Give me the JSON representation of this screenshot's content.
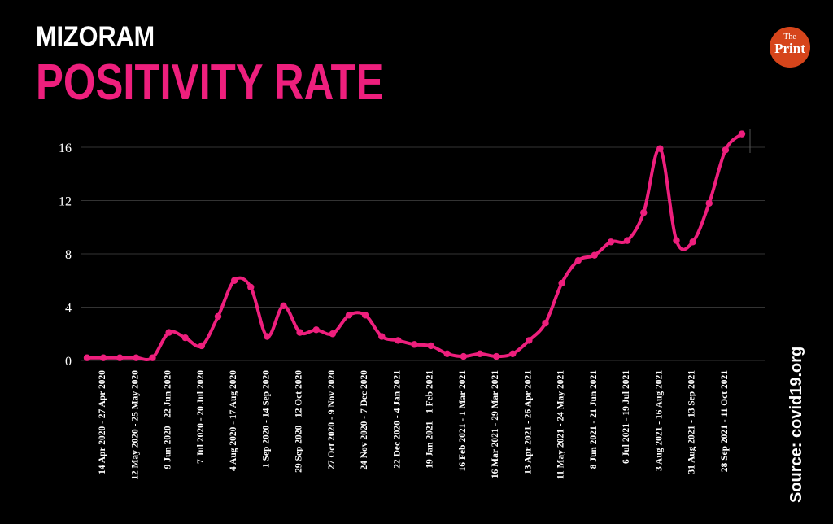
{
  "header": {
    "title": "MIZORAM",
    "subtitle": "POSITIVITY RATE"
  },
  "logo": {
    "line1": "The",
    "line2": "Print"
  },
  "source": "Source: covid19.org",
  "colors": {
    "accent": "#ee1f7d",
    "background": "#000000",
    "grid": "#333333",
    "logo": "#d6451b"
  },
  "chart_data": {
    "type": "line",
    "title": "POSITIVITY RATE",
    "xlabel": "",
    "ylabel": "",
    "ylim": [
      0,
      16
    ],
    "yticks": [
      0,
      4,
      8,
      12,
      16
    ],
    "tick_labels": [
      "14 Apr 2020 - 27 Apr 2020",
      "12 May 2020 - 25 May 2020",
      "9 Jun 2020 - 22 Jun 2020",
      "7 Jul 2020 - 20 Jul 2020",
      "4 Aug 2020 - 17 Aug 2020",
      "1 Sep 2020 - 14 Sep 2020",
      "29 Sep 2020 - 12 Oct 2020",
      "27 Oct 2020 - 9 Nov 2020",
      "24 Nov 2020 - 7 Dec 2020",
      "22 Dec 2020 - 4 Jan 2021",
      "19 Jan 2021 - 1 Feb 2021",
      "16 Feb 2021 - 1 Mar 2021",
      "16 Mar 2021 - 29 Mar 2021",
      "13 Apr 2021 - 26 Apr 2021",
      "11 May 2021 - 24 May 2021",
      "8 Jun 2021 - 21 Jun 2021",
      "6 Jul 2021 - 19 Jul 2021",
      "3 Aug 2021 - 16 Aug 2021",
      "31 Aug 2021 - 13 Sep 2021",
      "28 Sep 2021 - 11 Oct 2021"
    ],
    "series": [
      {
        "name": "Positivity rate",
        "values": [
          0.2,
          0.2,
          0.2,
          0.2,
          0.2,
          2.1,
          1.7,
          1.1,
          3.3,
          6.0,
          5.5,
          1.8,
          4.1,
          2.1,
          2.3,
          2.0,
          3.4,
          3.4,
          1.8,
          1.5,
          1.2,
          1.1,
          0.5,
          0.3,
          0.5,
          0.3,
          0.5,
          1.5,
          2.8,
          5.8,
          7.5,
          7.9,
          8.9,
          9.0,
          11.1,
          15.9,
          9.0,
          8.9,
          11.8,
          15.8,
          17.0
        ]
      }
    ]
  }
}
